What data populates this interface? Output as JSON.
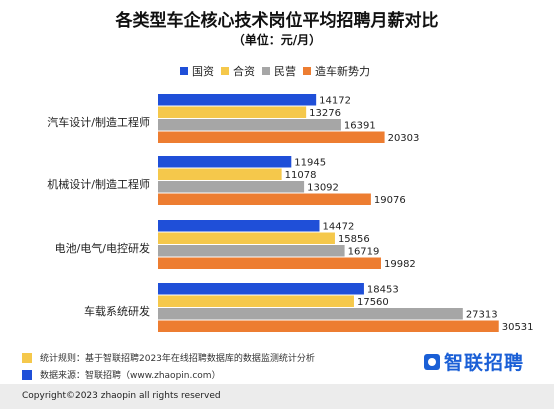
{
  "header": {
    "title": "各类型车企核心技术岗位平均招聘月薪对比",
    "subtitle": "（单位：元/月）"
  },
  "colors": {
    "guozi": "#1f4fd8",
    "hezi": "#f5c84b",
    "minying": "#a6a6a6",
    "zaoche": "#ed7d31"
  },
  "chart_data": {
    "type": "bar",
    "orientation": "horizontal",
    "title": "各类型车企核心技术岗位平均招聘月薪对比",
    "subtitle": "（单位：元/月）",
    "categories": [
      "汽车设计/制造工程师",
      "机械设计/制造工程师",
      "电池/电气/电控研发",
      "车载系统研发"
    ],
    "series": [
      {
        "name": "国资",
        "color": "#1f4fd8",
        "values": [
          14172,
          11945,
          14472,
          18453
        ]
      },
      {
        "name": "合资",
        "color": "#f5c84b",
        "values": [
          13276,
          11078,
          15856,
          17560
        ]
      },
      {
        "name": "民营",
        "color": "#a6a6a6",
        "values": [
          16391,
          13092,
          16719,
          27313
        ]
      },
      {
        "name": "造车新势力",
        "color": "#ed7d31",
        "values": [
          20303,
          19076,
          19982,
          30531
        ]
      }
    ],
    "legend_position": "top",
    "grid": false,
    "xlim": [
      0,
      31000
    ]
  },
  "footer": {
    "note1": "统计规则：基于智联招聘2023年在线招聘数据库的数据监测统计分析",
    "note2": "数据来源：智联招聘（www.zhaopin.com）",
    "brand": "智联招聘",
    "copyright": "Copyright©2023 zhaopin all rights reserved"
  }
}
